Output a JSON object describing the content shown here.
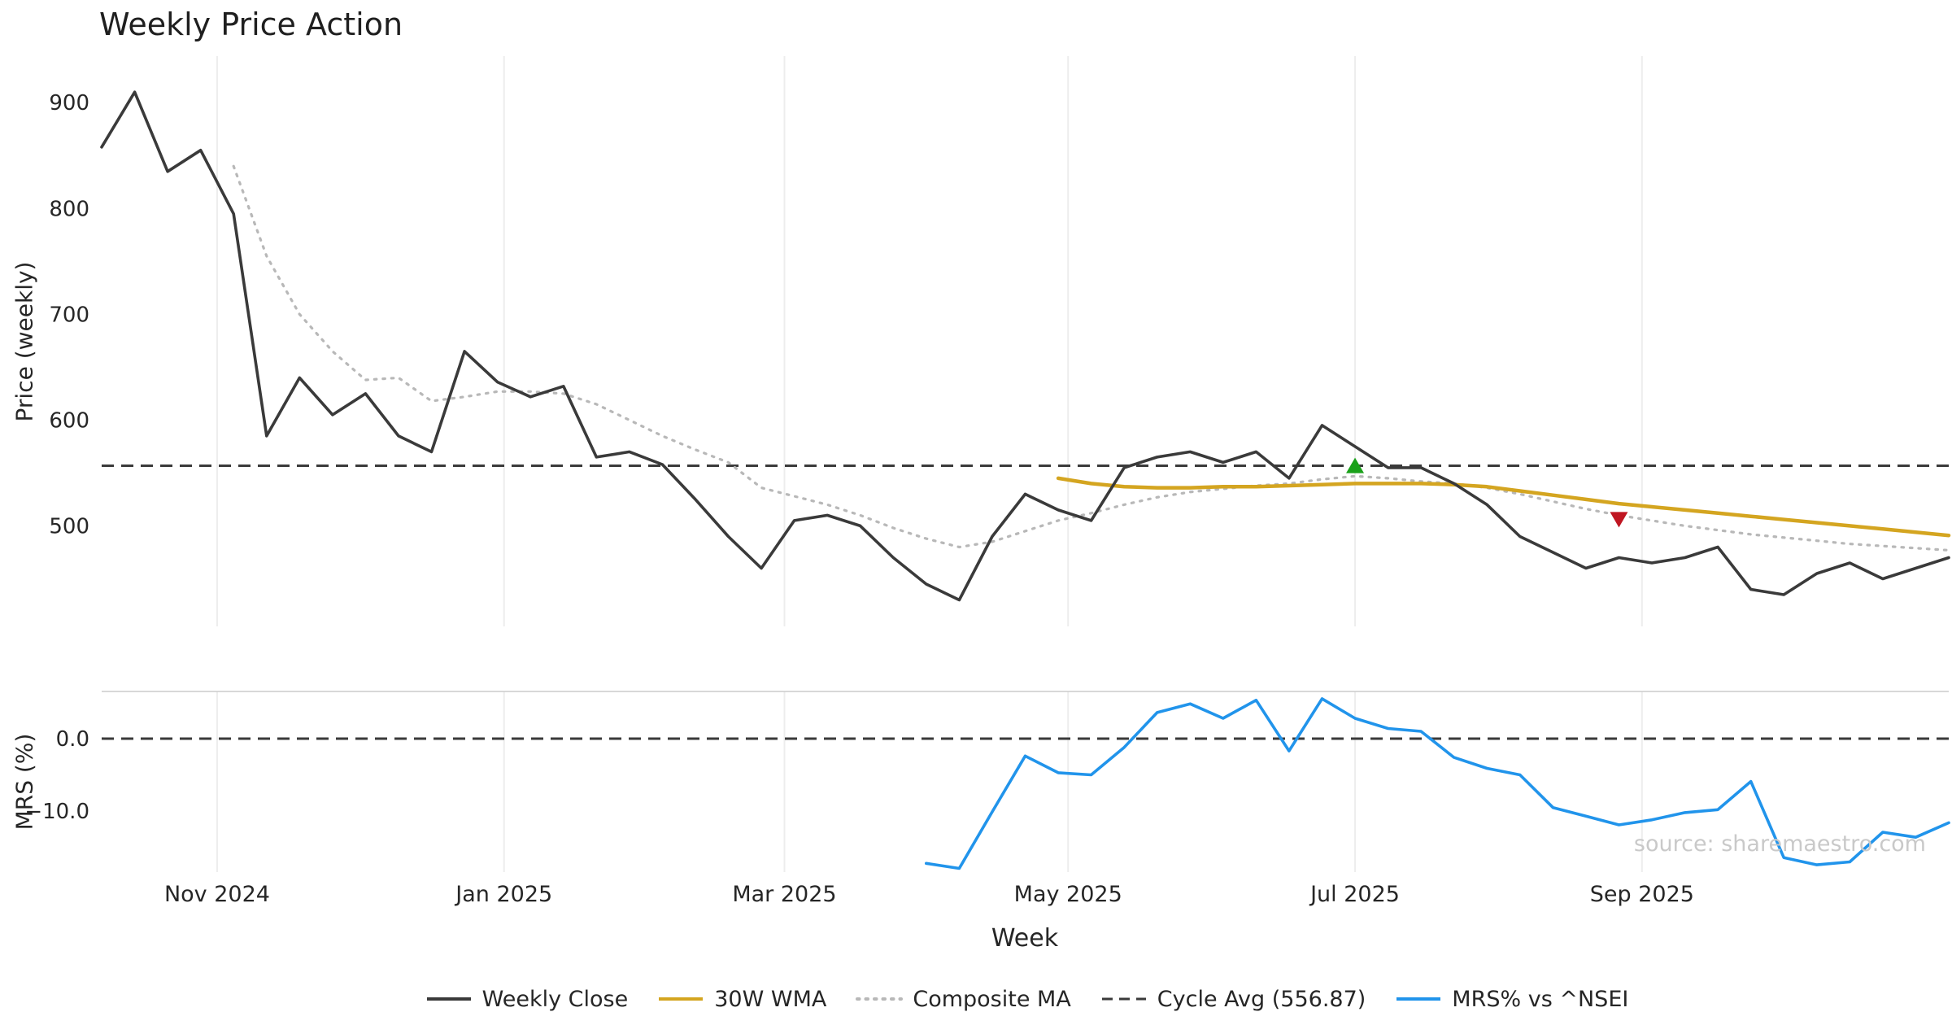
{
  "chart_data": {
    "type": "line",
    "title": "Weekly Price Action",
    "xlabel": "Week",
    "watermark": "source: sharemaestro.com",
    "x_unit": "week_index",
    "x_range": [
      0,
      56
    ],
    "x_ticks": [
      {
        "week": 3.5,
        "label": "Nov 2024"
      },
      {
        "week": 12.2,
        "label": "Jan 2025"
      },
      {
        "week": 20.7,
        "label": "Mar 2025"
      },
      {
        "week": 29.3,
        "label": "May 2025"
      },
      {
        "week": 38.0,
        "label": "Jul 2025"
      },
      {
        "week": 46.7,
        "label": "Sep 2025"
      }
    ],
    "panels": [
      {
        "id": "price",
        "ylabel": "Price (weekly)",
        "ylim": [
          405,
          944
        ],
        "grid": "vertical-only",
        "y_ticks": [
          {
            "value": 900,
            "label": "900"
          },
          {
            "value": 800,
            "label": "800"
          },
          {
            "value": 700,
            "label": "700"
          },
          {
            "value": 600,
            "label": "600"
          },
          {
            "value": 500,
            "label": "500"
          }
        ],
        "reference_lines": [
          {
            "name": "Cycle Avg",
            "value": 556.87,
            "style": "dashed",
            "color": "#3a3a3a"
          }
        ],
        "series": [
          {
            "name": "Composite MA",
            "color": "#b8b8b8",
            "style": "dotted",
            "width": 3.2,
            "start_week": 4,
            "values": [
              840,
              755,
              700,
              665,
              638,
              640,
              618,
              622,
              627,
              627,
              625,
              615,
              600,
              585,
              572,
              560,
              536,
              528,
              520,
              510,
              498,
              488,
              480,
              485,
              495,
              505,
              512,
              520,
              527,
              532,
              535,
              538,
              540,
              544,
              547,
              545,
              542,
              540,
              536,
              530,
              523,
              516,
              510,
              505,
              500,
              496,
              492,
              489,
              486,
              483,
              481,
              479,
              477
            ]
          },
          {
            "name": "30W WMA",
            "color": "#d4a520",
            "style": "solid",
            "width": 4.5,
            "start_week": 29,
            "values": [
              545,
              540,
              537,
              536,
              536,
              537,
              537,
              538,
              539,
              540,
              540,
              540,
              539,
              537,
              533,
              529,
              525,
              521,
              518,
              515,
              512,
              509,
              506,
              503,
              500,
              497,
              494,
              491
            ]
          },
          {
            "name": "Weekly Close",
            "color": "#3a3a3a",
            "style": "solid",
            "width": 3.6,
            "start_week": 0,
            "values": [
              858,
              910,
              835,
              855,
              795,
              585,
              640,
              605,
              625,
              585,
              570,
              665,
              636,
              622,
              632,
              565,
              570,
              558,
              525,
              490,
              460,
              505,
              510,
              500,
              470,
              445,
              430,
              490,
              530,
              515,
              505,
              555,
              565,
              570,
              560,
              570,
              545,
              595,
              575,
              555,
              555,
              540,
              520,
              490,
              475,
              460,
              470,
              465,
              470,
              480,
              440,
              435,
              455,
              465,
              450,
              460,
              470
            ]
          }
        ],
        "markers": [
          {
            "name": "buy-signal",
            "shape": "triangle-up",
            "color": "#1aa11a",
            "week": 38,
            "value": 556
          },
          {
            "name": "sell-signal",
            "shape": "triangle-down",
            "color": "#c01622",
            "week": 46,
            "value": 507
          }
        ]
      },
      {
        "id": "mrs",
        "ylabel": "MRS (%)",
        "ylim": [
          -18.4,
          6.5
        ],
        "grid": "vertical-only",
        "y_ticks": [
          {
            "value": 0,
            "label": "0.0"
          },
          {
            "value": -10,
            "label": "−10.0"
          }
        ],
        "reference_lines": [
          {
            "name": "Zero line",
            "value": 0,
            "style": "dashed",
            "color": "#3a3a3a"
          }
        ],
        "series": [
          {
            "name": "MRS% vs ^NSEI",
            "color": "#2194eb",
            "style": "solid",
            "width": 3.6,
            "start_week": 25,
            "values": [
              -17.2,
              -17.9,
              -10.1,
              -2.4,
              -4.7,
              -5.0,
              -1.2,
              3.6,
              4.8,
              2.8,
              5.3,
              -1.7,
              5.5,
              2.8,
              1.4,
              1.0,
              -2.6,
              -4.1,
              -5.0,
              -9.5,
              -10.7,
              -11.9,
              -11.2,
              -10.2,
              -9.8,
              -5.9,
              -16.4,
              -17.4,
              -17.0,
              -12.9,
              -13.6,
              -11.6
            ]
          }
        ]
      }
    ],
    "legend": [
      {
        "label": "Weekly Close",
        "color": "#3a3a3a",
        "style": "solid"
      },
      {
        "label": "30W WMA",
        "color": "#d4a520",
        "style": "solid"
      },
      {
        "label": "Composite MA",
        "color": "#b8b8b8",
        "style": "dotted"
      },
      {
        "label": "Cycle Avg (556.87)",
        "color": "#3a3a3a",
        "style": "dashed"
      },
      {
        "label": "MRS% vs ^NSEI",
        "color": "#2194eb",
        "style": "solid"
      }
    ],
    "colors": {
      "grid": "#ededed",
      "spine": "#cccccc",
      "tick_text": "#262626"
    }
  }
}
